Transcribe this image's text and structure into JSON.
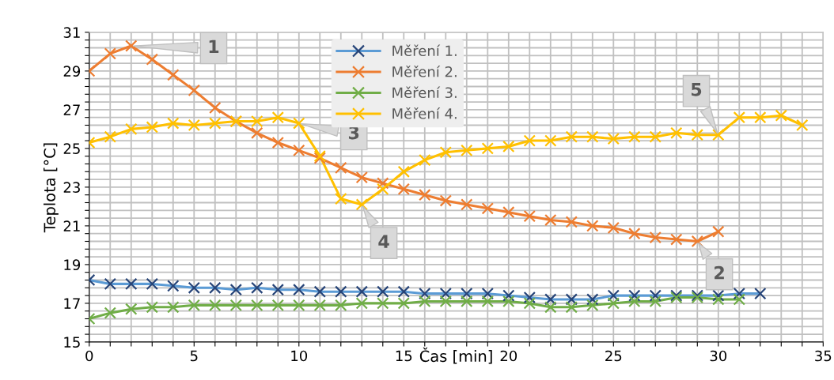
{
  "chart_data": {
    "type": "line",
    "xlabel": "Čas [min]",
    "ylabel": "Teplota [°C]",
    "xlim": [
      0,
      35
    ],
    "ylim": [
      15,
      31
    ],
    "xticks": [
      0,
      {
        "value": 1,
        "label": null
      },
      {
        "value": 2,
        "label": null
      },
      {
        "value": 3,
        "label": null
      },
      {
        "value": 4,
        "label": null
      },
      5,
      {
        "value": 6,
        "label": null
      },
      {
        "value": 7,
        "label": null
      },
      {
        "value": 8,
        "label": null
      },
      {
        "value": 9,
        "label": null
      },
      10,
      {
        "value": 11,
        "label": null
      },
      {
        "value": 12,
        "label": null
      },
      {
        "value": 13,
        "label": null
      },
      {
        "value": 14,
        "label": null
      },
      15,
      {
        "value": 16,
        "label": null
      },
      {
        "value": 17,
        "label": null
      },
      {
        "value": 18,
        "label": null
      },
      {
        "value": 19,
        "label": null
      },
      20,
      {
        "value": 21,
        "label": null
      },
      {
        "value": 22,
        "label": null
      },
      {
        "value": 23,
        "label": null
      },
      {
        "value": 24,
        "label": null
      },
      25,
      {
        "value": 26,
        "label": null
      },
      {
        "value": 27,
        "label": null
      },
      {
        "value": 28,
        "label": null
      },
      {
        "value": 29,
        "label": null
      },
      30,
      {
        "value": 31,
        "label": null
      },
      {
        "value": 32,
        "label": null
      },
      {
        "value": 33,
        "label": null
      },
      {
        "value": 34,
        "label": null
      },
      35
    ],
    "yticks": [
      15,
      {
        "value": 15.4,
        "label": null
      },
      {
        "value": 15.8,
        "label": null
      },
      {
        "value": 16.2,
        "label": null
      },
      {
        "value": 16.6,
        "label": null
      },
      17,
      {
        "value": 17.4,
        "label": null
      },
      {
        "value": 17.8,
        "label": null
      },
      {
        "value": 18.2,
        "label": null
      },
      {
        "value": 18.6,
        "label": null
      },
      19,
      {
        "value": 19.4,
        "label": null
      },
      {
        "value": 19.8,
        "label": null
      },
      {
        "value": 20.2,
        "label": null
      },
      {
        "value": 20.6,
        "label": null
      },
      21,
      {
        "value": 21.4,
        "label": null
      },
      {
        "value": 21.8,
        "label": null
      },
      {
        "value": 22.2,
        "label": null
      },
      {
        "value": 22.6,
        "label": null
      },
      23,
      {
        "value": 23.4,
        "label": null
      },
      {
        "value": 23.8,
        "label": null
      },
      {
        "value": 24.2,
        "label": null
      },
      {
        "value": 24.6,
        "label": null
      },
      25,
      {
        "value": 25.4,
        "label": null
      },
      {
        "value": 25.8,
        "label": null
      },
      {
        "value": 26.2,
        "label": null
      },
      {
        "value": 26.6,
        "label": null
      },
      27,
      {
        "value": 27.4,
        "label": null
      },
      {
        "value": 27.8,
        "label": null
      },
      {
        "value": 28.2,
        "label": null
      },
      {
        "value": 28.6,
        "label": null
      },
      29,
      {
        "value": 29.4,
        "label": null
      },
      {
        "value": 29.8,
        "label": null
      },
      {
        "value": 30.2,
        "label": null
      },
      {
        "value": 30.6,
        "label": null
      },
      31
    ],
    "grid": true,
    "legend": "top",
    "marker": "cross",
    "line_style": "solid",
    "series": [
      {
        "name": "Měření 1.",
        "color": "#5b9bd5",
        "colors": [
          "#264478",
          "#264478",
          "#264478",
          "#264478",
          "#264478",
          "#264478",
          "#264478",
          "#264478",
          "#264478",
          "#264478",
          "#264478",
          "#264478",
          "#264478",
          "#264478",
          "#264478",
          "#264478",
          "#264478",
          "#264478",
          "#264478",
          "#264478",
          "#264478",
          "#264478",
          "#264478",
          "#264478",
          "#264478",
          "#264478",
          "#264478",
          "#264478",
          "#264478",
          "#264478",
          "#264478",
          "#264478",
          "#264478"
        ],
        "x": [
          0,
          1,
          2,
          3,
          4,
          5,
          6,
          7,
          8,
          9,
          10,
          11,
          12,
          13,
          14,
          15,
          16,
          17,
          18,
          19,
          20,
          21,
          22,
          23,
          24,
          25,
          26,
          27,
          28,
          29,
          30,
          31,
          32
        ],
        "values": [
          18.2,
          18.0,
          18.0,
          18.0,
          17.9,
          17.8,
          17.8,
          17.7,
          17.8,
          17.7,
          17.7,
          17.6,
          17.6,
          17.6,
          17.6,
          17.6,
          17.5,
          17.5,
          17.5,
          17.5,
          17.4,
          17.3,
          17.2,
          17.2,
          17.2,
          17.4,
          17.4,
          17.4,
          17.4,
          17.4,
          17.4,
          17.5,
          17.5
        ]
      },
      {
        "name": "Měření 2.",
        "color": "#ed7d31",
        "x": [
          0,
          1,
          2,
          3,
          4,
          5,
          6,
          7,
          8,
          9,
          10,
          11,
          12,
          13,
          14,
          15,
          16,
          17,
          18,
          19,
          20,
          21,
          22,
          23,
          24,
          25,
          26,
          27,
          28,
          29,
          30
        ],
        "values": [
          29.0,
          29.9,
          30.3,
          29.6,
          28.8,
          28.0,
          27.1,
          26.4,
          25.8,
          25.3,
          24.9,
          24.5,
          24.0,
          23.5,
          23.2,
          22.9,
          22.6,
          22.3,
          22.1,
          21.9,
          21.7,
          21.5,
          21.3,
          21.2,
          21.0,
          20.9,
          20.6,
          20.4,
          20.3,
          20.2,
          20.7
        ]
      },
      {
        "name": "Měření 3.",
        "color": "#70ad47",
        "x": [
          0,
          1,
          2,
          3,
          4,
          5,
          6,
          7,
          8,
          9,
          10,
          11,
          12,
          13,
          14,
          15,
          16,
          17,
          18,
          19,
          20,
          21,
          22,
          23,
          24,
          25,
          26,
          27,
          28,
          29,
          30,
          31
        ],
        "values": [
          16.2,
          16.5,
          16.7,
          16.8,
          16.8,
          16.9,
          16.9,
          16.9,
          16.9,
          16.9,
          16.9,
          16.9,
          16.9,
          17.0,
          17.0,
          17.0,
          17.1,
          17.1,
          17.1,
          17.1,
          17.1,
          17.0,
          16.8,
          16.8,
          16.9,
          17.0,
          17.1,
          17.1,
          17.3,
          17.3,
          17.2,
          17.2
        ]
      },
      {
        "name": "Měření 4.",
        "color": "#ffc000",
        "x": [
          0,
          1,
          2,
          3,
          4,
          5,
          6,
          7,
          8,
          9,
          10,
          11,
          12,
          13,
          14,
          15,
          16,
          17,
          18,
          19,
          20,
          21,
          22,
          23,
          24,
          25,
          26,
          27,
          28,
          29,
          30,
          31,
          32,
          33,
          34
        ],
        "values": [
          25.3,
          25.6,
          26.0,
          26.1,
          26.3,
          26.2,
          26.3,
          26.4,
          26.4,
          26.6,
          26.3,
          24.6,
          22.4,
          22.1,
          22.9,
          23.8,
          24.4,
          24.8,
          24.9,
          25.0,
          25.1,
          25.4,
          25.4,
          25.6,
          25.6,
          25.5,
          25.6,
          25.6,
          25.8,
          25.7,
          25.7,
          26.6,
          26.6,
          26.7,
          26.2
        ]
      }
    ],
    "annotations": [
      {
        "text": "1",
        "x": 2,
        "y": 30.3
      },
      {
        "text": "2",
        "x": 29,
        "y": 20.2
      },
      {
        "text": "3",
        "x": 10,
        "y": 26.3
      },
      {
        "text": "4",
        "x": 13,
        "y": 22.1
      },
      {
        "text": "5",
        "x": 30,
        "y": 25.7
      }
    ]
  }
}
